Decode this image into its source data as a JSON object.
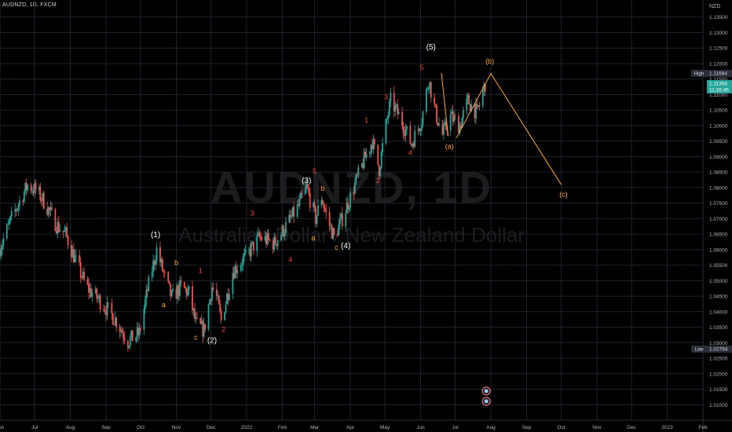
{
  "header": {
    "symbol_title": "AUDNZD, 1D, FXCM"
  },
  "watermark": {
    "symbol": "AUDNZD, 1D",
    "description": "Australian Dollar / New Zealand Dollar"
  },
  "price_axis": {
    "currency": "NZD"
  },
  "colors": {
    "background": "#000000",
    "grid": "#1e222d",
    "bull": "#26a69a",
    "bear": "#ef5350",
    "wave_white": "#ffffff",
    "wave_red": "#f44336",
    "wave_orange": "#ffa726",
    "projection": "#ffa726",
    "high_label_bg": "#2a2e39",
    "current_price_bg": "#26a69a"
  },
  "chart_data": {
    "type": "candlestick",
    "title": "AUDNZD, 1D, FXCM",
    "x_axis": {
      "type": "date",
      "start": "2021-06-01",
      "end": "2023-02-01",
      "tick_labels": [
        "Jun",
        "Jul",
        "Aug",
        "Sep",
        "Oct",
        "Nov",
        "Dec",
        "2022",
        "Feb",
        "Mar",
        "Apr",
        "May",
        "Jun",
        "Jul",
        "Aug",
        "Sep",
        "Oct",
        "Nov",
        "Dec",
        "2023",
        "Feb"
      ],
      "tick_dates": [
        "2021-06-01",
        "2021-07-01",
        "2021-08-01",
        "2021-09-01",
        "2021-10-01",
        "2021-11-01",
        "2021-12-01",
        "2022-01-01",
        "2022-02-01",
        "2022-03-01",
        "2022-04-01",
        "2022-05-01",
        "2022-06-01",
        "2022-07-01",
        "2022-08-01",
        "2022-09-01",
        "2022-10-01",
        "2022-11-01",
        "2022-12-01",
        "2023-01-01",
        "2023-02-01"
      ]
    },
    "y_axis": {
      "label": "NZD",
      "range": [
        1.005,
        1.1405
      ],
      "tick_labels": [
        "1.13500",
        "1.13000",
        "1.12500",
        "1.12000",
        "1.11500",
        "1.11000",
        "1.10500",
        "1.10000",
        "1.09500",
        "1.09000",
        "1.08500",
        "1.08000",
        "1.07500",
        "1.07000",
        "1.06500",
        "1.06000",
        "1.05500",
        "1.05000",
        "1.04500",
        "1.04000",
        "1.03500",
        "1.03000",
        "1.02500",
        "1.02000",
        "1.01500",
        "1.01000"
      ],
      "tick_values": [
        1.135,
        1.13,
        1.125,
        1.12,
        1.115,
        1.11,
        1.105,
        1.1,
        1.095,
        1.09,
        1.085,
        1.08,
        1.075,
        1.07,
        1.065,
        1.06,
        1.055,
        1.05,
        1.045,
        1.04,
        1.035,
        1.03,
        1.025,
        1.02,
        1.015,
        1.01
      ]
    },
    "grid": true,
    "price_path": [
      [
        "2021-06-01",
        1.0606
      ],
      [
        "2021-06-12",
        1.071
      ],
      [
        "2021-06-25",
        1.0808
      ],
      [
        "2021-07-03",
        1.079
      ],
      [
        "2021-07-10",
        1.075
      ],
      [
        "2021-07-20",
        1.068
      ],
      [
        "2021-07-28",
        1.065
      ],
      [
        "2021-08-05",
        1.057
      ],
      [
        "2021-08-15",
        1.048
      ],
      [
        "2021-08-28",
        1.043
      ],
      [
        "2021-09-10",
        1.037
      ],
      [
        "2021-09-20",
        1.0305
      ],
      [
        "2021-09-30",
        1.033
      ],
      [
        "2021-10-07",
        1.047
      ],
      [
        "2021-10-15",
        1.06
      ],
      [
        "2021-10-22",
        1.051
      ],
      [
        "2021-10-28",
        1.0445
      ],
      [
        "2021-11-05",
        1.048
      ],
      [
        "2021-11-12",
        1.046
      ],
      [
        "2021-11-18",
        1.036
      ],
      [
        "2021-11-25",
        1.034
      ],
      [
        "2021-12-02",
        1.048
      ],
      [
        "2021-12-06",
        1.0445
      ],
      [
        "2021-12-10",
        1.037
      ],
      [
        "2021-12-20",
        1.053
      ],
      [
        "2022-01-01",
        1.058
      ],
      [
        "2022-01-12",
        1.064
      ],
      [
        "2022-01-25",
        1.062
      ],
      [
        "2022-02-05",
        1.068
      ],
      [
        "2022-02-15",
        1.074
      ],
      [
        "2022-02-22",
        1.08
      ],
      [
        "2022-03-02",
        1.07
      ],
      [
        "2022-03-07",
        1.077
      ],
      [
        "2022-03-12",
        1.07
      ],
      [
        "2022-03-18",
        1.064
      ],
      [
        "2022-03-25",
        1.07
      ],
      [
        "2022-04-02",
        1.078
      ],
      [
        "2022-04-12",
        1.088
      ],
      [
        "2022-04-20",
        1.095
      ],
      [
        "2022-04-26",
        1.086
      ],
      [
        "2022-05-01",
        1.098
      ],
      [
        "2022-05-06",
        1.108
      ],
      [
        "2022-05-15",
        1.102
      ],
      [
        "2022-05-24",
        1.094
      ],
      [
        "2022-06-02",
        1.102
      ],
      [
        "2022-06-08",
        1.115
      ],
      [
        "2022-06-14",
        1.104
      ],
      [
        "2022-06-20",
        1.097
      ],
      [
        "2022-06-27",
        1.103
      ],
      [
        "2022-07-05",
        1.1
      ],
      [
        "2022-07-12",
        1.108
      ],
      [
        "2022-07-20",
        1.104
      ],
      [
        "2022-07-27",
        1.1136
      ]
    ],
    "waves": [
      {
        "label": "(1)",
        "color": "wave_white",
        "date": "2021-10-14",
        "price": 1.064,
        "size": 10
      },
      {
        "label": "b",
        "color": "wave_orange",
        "date": "2021-11-01",
        "price": 1.055,
        "size": 9
      },
      {
        "label": "a",
        "color": "wave_orange",
        "date": "2021-10-21",
        "price": 1.0415,
        "size": 9
      },
      {
        "label": "1",
        "color": "wave_red",
        "date": "2021-11-22",
        "price": 1.0525,
        "size": 9
      },
      {
        "label": "c",
        "color": "wave_orange",
        "date": "2021-11-18",
        "price": 1.031,
        "size": 9
      },
      {
        "label": "(2)",
        "color": "wave_white",
        "date": "2021-12-02",
        "price": 1.03,
        "size": 10
      },
      {
        "label": "2",
        "color": "wave_red",
        "date": "2021-12-12",
        "price": 1.0335,
        "size": 9
      },
      {
        "label": "3",
        "color": "wave_red",
        "date": "2022-01-06",
        "price": 1.071,
        "size": 9
      },
      {
        "label": "4",
        "color": "wave_red",
        "date": "2022-02-08",
        "price": 1.056,
        "size": 9
      },
      {
        "label": "(3)",
        "color": "wave_white",
        "date": "2022-02-22",
        "price": 1.0815,
        "size": 10
      },
      {
        "label": "5",
        "color": "wave_red",
        "date": "2022-03-01",
        "price": 1.0845,
        "size": 9
      },
      {
        "label": "b",
        "color": "wave_orange",
        "date": "2022-03-08",
        "price": 1.079,
        "size": 9
      },
      {
        "label": "a",
        "color": "wave_orange",
        "date": "2022-02-28",
        "price": 1.063,
        "size": 9
      },
      {
        "label": "c",
        "color": "wave_orange",
        "date": "2022-03-20",
        "price": 1.06,
        "size": 9
      },
      {
        "label": "(4)",
        "color": "wave_white",
        "date": "2022-03-28",
        "price": 1.0605,
        "size": 10
      },
      {
        "label": "1",
        "color": "wave_red",
        "date": "2022-04-15",
        "price": 1.101,
        "size": 9
      },
      {
        "label": "2",
        "color": "wave_red",
        "date": "2022-04-25",
        "price": 1.0815,
        "size": 9
      },
      {
        "label": "3",
        "color": "wave_red",
        "date": "2022-05-02",
        "price": 1.1085,
        "size": 9
      },
      {
        "label": "4",
        "color": "wave_red",
        "date": "2022-05-23",
        "price": 1.0905,
        "size": 9
      },
      {
        "label": "5",
        "color": "wave_red",
        "date": "2022-06-02",
        "price": 1.118,
        "size": 9
      },
      {
        "label": "(5)",
        "color": "wave_white",
        "date": "2022-06-10",
        "price": 1.1245,
        "size": 10
      },
      {
        "label": "(a)",
        "color": "wave_orange",
        "date": "2022-06-26",
        "price": 1.0925,
        "size": 9
      },
      {
        "label": "(b)",
        "color": "wave_orange",
        "date": "2022-07-31",
        "price": 1.12,
        "size": 9
      },
      {
        "label": "(c)",
        "color": "wave_orange",
        "date": "2022-10-03",
        "price": 1.077,
        "size": 9
      }
    ],
    "projection": [
      {
        "date": "2022-07-02",
        "price": 1.096
      },
      {
        "date": "2022-08-01",
        "price": 1.1168
      },
      {
        "date": "2022-10-01",
        "price": 1.081
      }
    ],
    "wave5_line": [
      {
        "date": "2022-06-19",
        "price": 1.117
      },
      {
        "date": "2022-06-25",
        "price": 1.0965
      }
    ],
    "price_labels": {
      "high": {
        "label": "High",
        "value": "1.11684",
        "price": 1.11684
      },
      "current": {
        "value": "1.11356",
        "countdown": "11:26:45",
        "price": 1.11356
      },
      "low": {
        "label": "Low",
        "value": "1.02794",
        "price": 1.02794
      }
    },
    "event_markers": [
      {
        "date": "2022-07-28",
        "price": 1.0144
      },
      {
        "date": "2022-07-28",
        "price": 1.0111
      }
    ]
  }
}
